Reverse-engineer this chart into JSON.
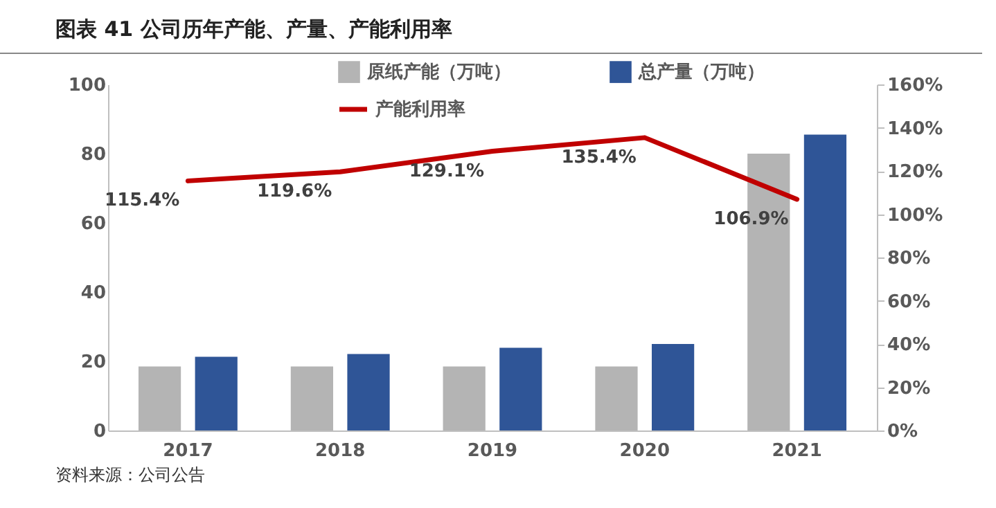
{
  "chart_data": {
    "type": "bar",
    "title": "图表 41 公司历年产能、产量、产能利用率",
    "annotations": [
      "资料来源：公司公告"
    ],
    "categories": [
      "2017",
      "2018",
      "2019",
      "2020",
      "2021"
    ],
    "series": [
      {
        "name": "原纸产能（万吨）",
        "color": "#b4b4b4",
        "values": [
          18.5,
          18.5,
          18.5,
          18.5,
          80
        ]
      },
      {
        "name": "总产量（万吨）",
        "color": "#2f5597",
        "values": [
          21.3,
          22.1,
          23.9,
          25.0,
          85.5
        ]
      },
      {
        "name": "产能利用率",
        "type": "line",
        "axis": "y2",
        "color": "#c00000",
        "values": [
          115.4,
          119.6,
          129.1,
          135.4,
          106.9
        ],
        "value_labels": [
          "115.4%",
          "119.6%",
          "129.1%",
          "135.4%",
          "106.9%"
        ]
      }
    ],
    "ylim": [
      0,
      100
    ],
    "yticks": [
      0,
      20,
      40,
      60,
      80,
      100
    ],
    "y2lim": [
      0,
      160
    ],
    "y2ticks": [
      {
        "value": 0,
        "label": "0%"
      },
      {
        "value": 20,
        "label": "20%"
      },
      {
        "value": 40,
        "label": "40%"
      },
      {
        "value": 60,
        "label": "60%"
      },
      {
        "value": 80,
        "label": "80%"
      },
      {
        "value": 100,
        "label": "100%"
      },
      {
        "value": 120,
        "label": "120%"
      },
      {
        "value": 140,
        "label": "140%"
      },
      {
        "value": 160,
        "label": "160%"
      }
    ],
    "grid": false,
    "legend": "top"
  }
}
